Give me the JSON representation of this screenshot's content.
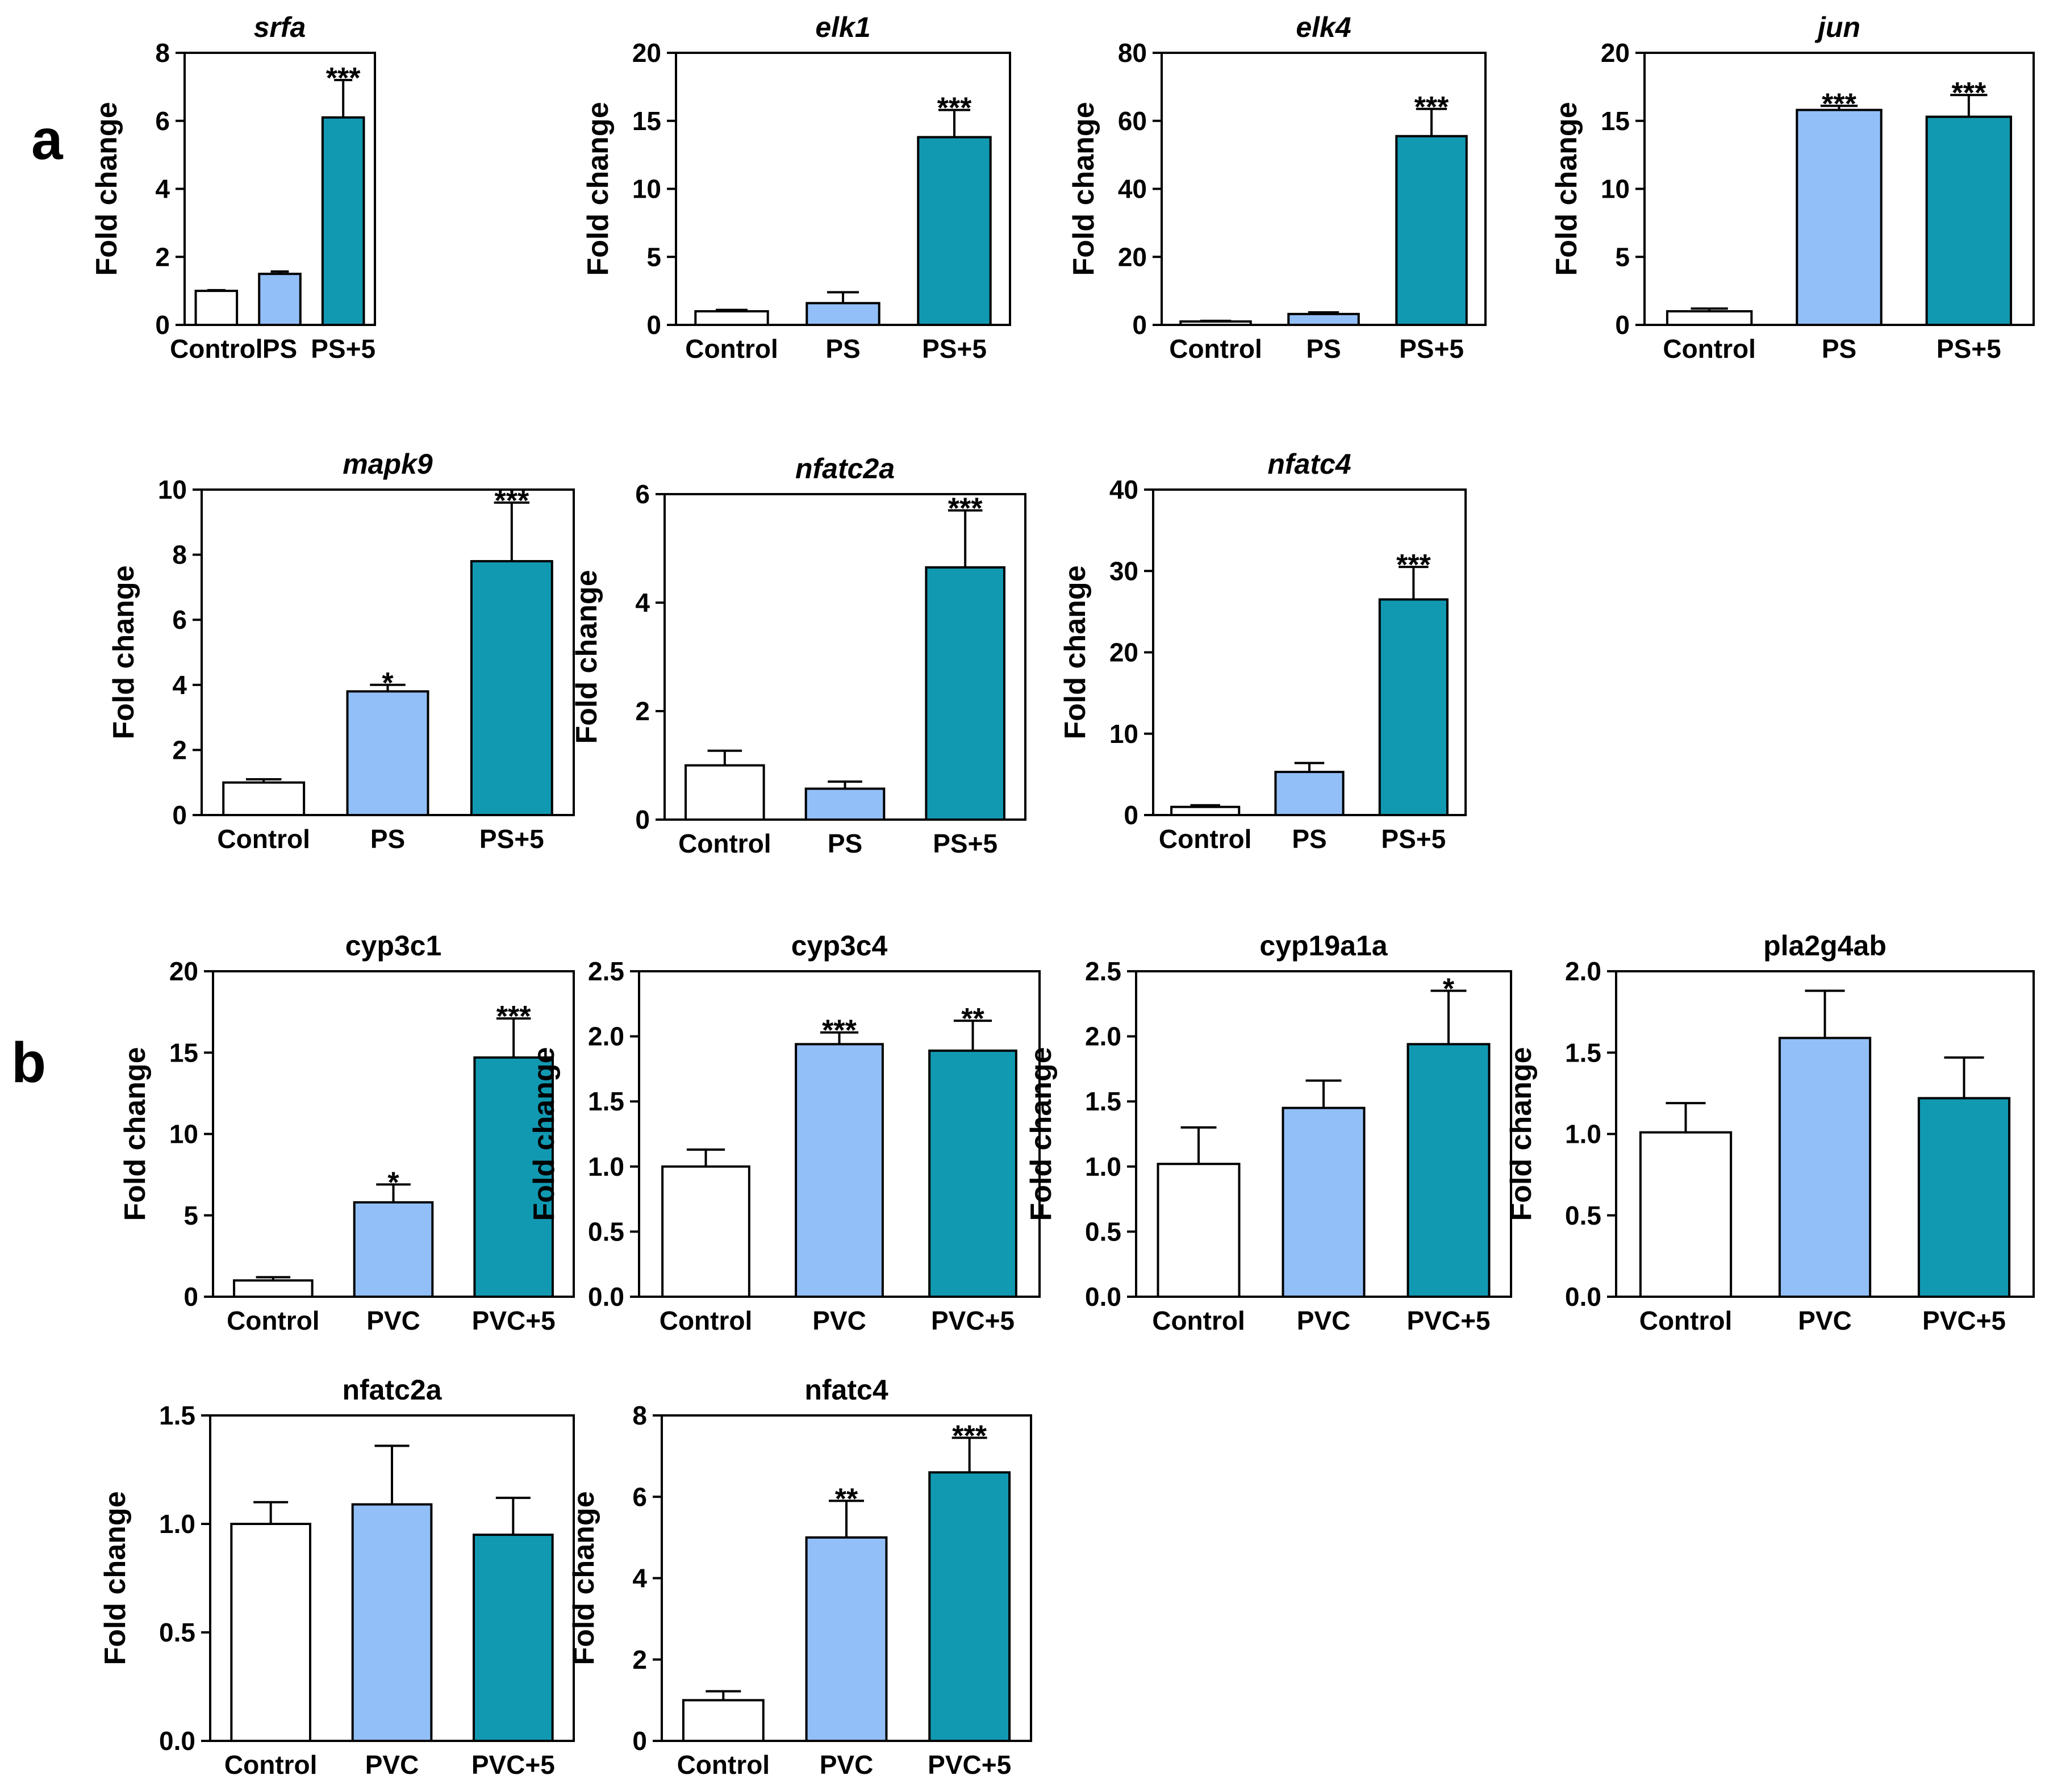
{
  "figure": {
    "panel_labels": [
      "a",
      "b"
    ],
    "group_colors": {
      "Control": "#ffffff",
      "Treatment": "#93bff8",
      "Treatment+5": "#1299b2"
    },
    "bar_stroke": "#000000"
  },
  "chart_data": [
    {
      "panel": "a",
      "type": "bar",
      "title": "srfa",
      "title_italic": true,
      "ylabel": "Fold change",
      "categories": [
        "Control",
        "PS",
        "PS+5"
      ],
      "values": [
        1.0,
        1.5,
        6.1
      ],
      "errors": [
        0.02,
        0.07,
        1.1
      ],
      "significance": [
        "",
        "",
        "***"
      ],
      "ylim": [
        0,
        8
      ],
      "yticks": [
        "0",
        "2",
        "4",
        "6",
        "8"
      ]
    },
    {
      "panel": "a",
      "type": "bar",
      "title": "elk1",
      "title_italic": true,
      "ylabel": "Fold change",
      "categories": [
        "Control",
        "PS",
        "PS+5"
      ],
      "values": [
        1.0,
        1.6,
        13.8
      ],
      "errors": [
        0.1,
        0.8,
        2.0
      ],
      "significance": [
        "",
        "",
        "***"
      ],
      "ylim": [
        0,
        20
      ],
      "yticks": [
        "0",
        "5",
        "10",
        "15",
        "20"
      ]
    },
    {
      "panel": "a",
      "type": "bar",
      "title": "elk4",
      "title_italic": true,
      "ylabel": "Fold change",
      "categories": [
        "Control",
        "PS",
        "PS+5"
      ],
      "values": [
        1.0,
        3.2,
        55.5
      ],
      "errors": [
        0.2,
        0.5,
        8.0
      ],
      "significance": [
        "",
        "",
        "***"
      ],
      "ylim": [
        0,
        80
      ],
      "yticks": [
        "0",
        "20",
        "40",
        "60",
        "80"
      ]
    },
    {
      "panel": "a",
      "type": "bar",
      "title": "jun",
      "title_italic": true,
      "ylabel": "Fold change",
      "categories": [
        "Control",
        "PS",
        "PS+5"
      ],
      "values": [
        1.0,
        15.8,
        15.3
      ],
      "errors": [
        0.2,
        0.3,
        1.6
      ],
      "significance": [
        "",
        "***",
        "***"
      ],
      "ylim": [
        0,
        20
      ],
      "yticks": [
        "0",
        "5",
        "10",
        "15",
        "20"
      ]
    },
    {
      "panel": "a",
      "type": "bar",
      "title": "mapk9",
      "title_italic": true,
      "ylabel": "Fold change",
      "categories": [
        "Control",
        "PS",
        "PS+5"
      ],
      "values": [
        1.0,
        3.8,
        7.8
      ],
      "errors": [
        0.1,
        0.2,
        1.8
      ],
      "significance": [
        "",
        "*",
        "***"
      ],
      "ylim": [
        0,
        10
      ],
      "yticks": [
        "0",
        "2",
        "4",
        "6",
        "8",
        "10"
      ]
    },
    {
      "panel": "a",
      "type": "bar",
      "title": "nfatc2a",
      "title_italic": true,
      "ylabel": "Fold change",
      "categories": [
        "Control",
        "PS",
        "PS+5"
      ],
      "values": [
        1.0,
        0.57,
        4.65
      ],
      "errors": [
        0.27,
        0.13,
        1.05
      ],
      "significance": [
        "",
        "",
        "***"
      ],
      "ylim": [
        0,
        6
      ],
      "yticks": [
        "0",
        "2",
        "4",
        "6"
      ]
    },
    {
      "panel": "a",
      "type": "bar",
      "title": "nfatc4",
      "title_italic": true,
      "ylabel": "Fold change",
      "categories": [
        "Control",
        "PS",
        "PS+5"
      ],
      "values": [
        1.0,
        5.3,
        26.5
      ],
      "errors": [
        0.2,
        1.1,
        4.0
      ],
      "significance": [
        "",
        "",
        "***"
      ],
      "ylim": [
        0,
        40
      ],
      "yticks": [
        "0",
        "10",
        "20",
        "30",
        "40"
      ]
    },
    {
      "panel": "b",
      "type": "bar",
      "title": "cyp3c1",
      "title_italic": false,
      "ylabel": "Fold change",
      "categories": [
        "Control",
        "PVC",
        "PVC+5"
      ],
      "values": [
        1.0,
        5.8,
        14.7
      ],
      "errors": [
        0.2,
        1.1,
        2.4
      ],
      "significance": [
        "",
        "*",
        "***"
      ],
      "ylim": [
        0,
        20
      ],
      "yticks": [
        "0",
        "5",
        "10",
        "15",
        "20"
      ]
    },
    {
      "panel": "b",
      "type": "bar",
      "title": "cyp3c4",
      "title_italic": false,
      "ylabel": "Fold change",
      "categories": [
        "Control",
        "PVC",
        "PVC+5"
      ],
      "values": [
        1.0,
        1.94,
        1.89
      ],
      "errors": [
        0.13,
        0.09,
        0.23
      ],
      "significance": [
        "",
        "***",
        "**"
      ],
      "ylim": [
        0,
        2.5
      ],
      "yticks": [
        "0.0",
        "0.5",
        "1.0",
        "1.5",
        "2.0",
        "2.5"
      ]
    },
    {
      "panel": "b",
      "type": "bar",
      "title": "cyp19a1a",
      "title_italic": false,
      "ylabel": "Fold change",
      "categories": [
        "Control",
        "PVC",
        "PVC+5"
      ],
      "values": [
        1.02,
        1.45,
        1.94
      ],
      "errors": [
        0.28,
        0.21,
        0.41
      ],
      "significance": [
        "",
        "",
        "*"
      ],
      "ylim": [
        0,
        2.5
      ],
      "yticks": [
        "0.0",
        "0.5",
        "1.0",
        "1.5",
        "2.0",
        "2.5"
      ]
    },
    {
      "panel": "b",
      "type": "bar",
      "title": "pla2g4ab",
      "title_italic": false,
      "ylabel": "Fold change",
      "categories": [
        "Control",
        "PVC",
        "PVC+5"
      ],
      "values": [
        1.01,
        1.59,
        1.22
      ],
      "errors": [
        0.18,
        0.29,
        0.25
      ],
      "significance": [
        "",
        "",
        ""
      ],
      "ylim": [
        0,
        2.0
      ],
      "yticks": [
        "0.0",
        "0.5",
        "1.0",
        "1.5",
        "2.0"
      ]
    },
    {
      "panel": "b",
      "type": "bar",
      "title": "nfatc2a",
      "title_italic": false,
      "ylabel": "Fold change",
      "categories": [
        "Control",
        "PVC",
        "PVC+5"
      ],
      "values": [
        1.0,
        1.09,
        0.95
      ],
      "errors": [
        0.1,
        0.27,
        0.17
      ],
      "significance": [
        "",
        "",
        ""
      ],
      "ylim": [
        0,
        1.5
      ],
      "yticks": [
        "0.0",
        "0.5",
        "1.0",
        "1.5"
      ]
    },
    {
      "panel": "b",
      "type": "bar",
      "title": "nfatc4",
      "title_italic": false,
      "ylabel": "Fold change",
      "categories": [
        "Control",
        "PVC",
        "PVC+5"
      ],
      "values": [
        1.0,
        5.0,
        6.6
      ],
      "errors": [
        0.22,
        0.9,
        0.85
      ],
      "significance": [
        "",
        "**",
        "***"
      ],
      "ylim": [
        0,
        8
      ],
      "yticks": [
        "0",
        "2",
        "4",
        "6",
        "8"
      ]
    }
  ]
}
